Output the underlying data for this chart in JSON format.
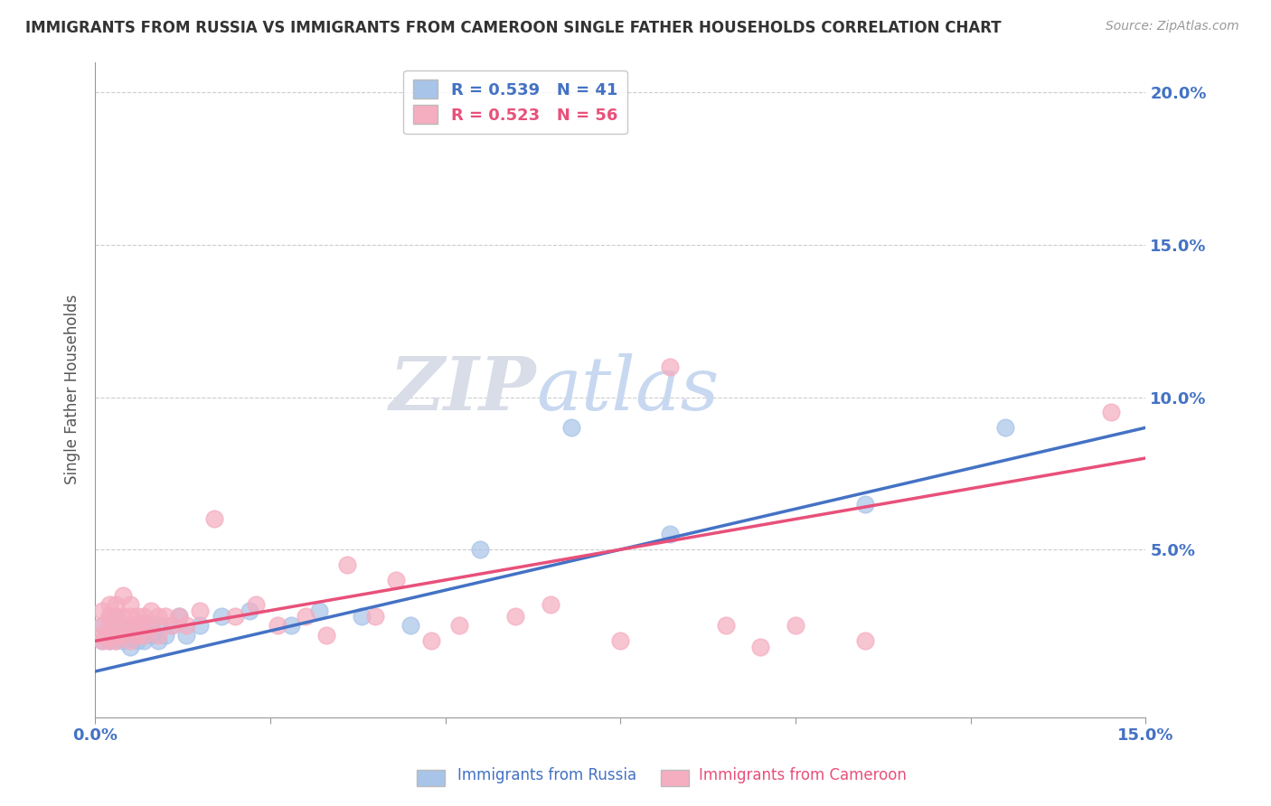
{
  "title": "IMMIGRANTS FROM RUSSIA VS IMMIGRANTS FROM CAMEROON SINGLE FATHER HOUSEHOLDS CORRELATION CHART",
  "source": "Source: ZipAtlas.com",
  "xlabel": "",
  "ylabel": "Single Father Households",
  "xlim": [
    0.0,
    0.15
  ],
  "ylim": [
    -0.005,
    0.21
  ],
  "russia_R": 0.539,
  "russia_N": 41,
  "cameroon_R": 0.523,
  "cameroon_N": 56,
  "russia_color": "#a8c4e8",
  "cameroon_color": "#f5adc0",
  "russia_line_color": "#4472c4",
  "cameroon_line_color": "#e8507a",
  "background_color": "#ffffff",
  "watermark_left": "ZIP",
  "watermark_right": "atlas",
  "russia_x": [
    0.001,
    0.001,
    0.002,
    0.002,
    0.002,
    0.003,
    0.003,
    0.003,
    0.003,
    0.004,
    0.004,
    0.004,
    0.005,
    0.005,
    0.005,
    0.006,
    0.006,
    0.006,
    0.007,
    0.007,
    0.007,
    0.008,
    0.008,
    0.009,
    0.009,
    0.01,
    0.011,
    0.012,
    0.013,
    0.015,
    0.018,
    0.022,
    0.028,
    0.032,
    0.038,
    0.045,
    0.055,
    0.068,
    0.082,
    0.11,
    0.13
  ],
  "russia_y": [
    0.02,
    0.025,
    0.02,
    0.022,
    0.028,
    0.02,
    0.022,
    0.025,
    0.028,
    0.02,
    0.022,
    0.025,
    0.018,
    0.022,
    0.025,
    0.02,
    0.022,
    0.025,
    0.02,
    0.023,
    0.026,
    0.022,
    0.025,
    0.02,
    0.025,
    0.022,
    0.025,
    0.028,
    0.022,
    0.025,
    0.028,
    0.03,
    0.025,
    0.03,
    0.028,
    0.025,
    0.05,
    0.09,
    0.055,
    0.065,
    0.09
  ],
  "cameroon_x": [
    0.001,
    0.001,
    0.001,
    0.001,
    0.002,
    0.002,
    0.002,
    0.002,
    0.002,
    0.003,
    0.003,
    0.003,
    0.003,
    0.004,
    0.004,
    0.004,
    0.004,
    0.005,
    0.005,
    0.005,
    0.005,
    0.006,
    0.006,
    0.006,
    0.007,
    0.007,
    0.007,
    0.008,
    0.008,
    0.009,
    0.009,
    0.01,
    0.011,
    0.012,
    0.013,
    0.015,
    0.017,
    0.02,
    0.023,
    0.026,
    0.03,
    0.033,
    0.036,
    0.04,
    0.043,
    0.048,
    0.052,
    0.06,
    0.065,
    0.075,
    0.082,
    0.09,
    0.095,
    0.1,
    0.11,
    0.145
  ],
  "cameroon_y": [
    0.02,
    0.022,
    0.025,
    0.03,
    0.02,
    0.022,
    0.025,
    0.028,
    0.032,
    0.02,
    0.022,
    0.028,
    0.032,
    0.022,
    0.025,
    0.028,
    0.035,
    0.02,
    0.025,
    0.028,
    0.032,
    0.022,
    0.025,
    0.028,
    0.022,
    0.025,
    0.028,
    0.025,
    0.03,
    0.022,
    0.028,
    0.028,
    0.025,
    0.028,
    0.025,
    0.03,
    0.06,
    0.028,
    0.032,
    0.025,
    0.028,
    0.022,
    0.045,
    0.028,
    0.04,
    0.02,
    0.025,
    0.028,
    0.032,
    0.02,
    0.11,
    0.025,
    0.018,
    0.025,
    0.02,
    0.095
  ]
}
